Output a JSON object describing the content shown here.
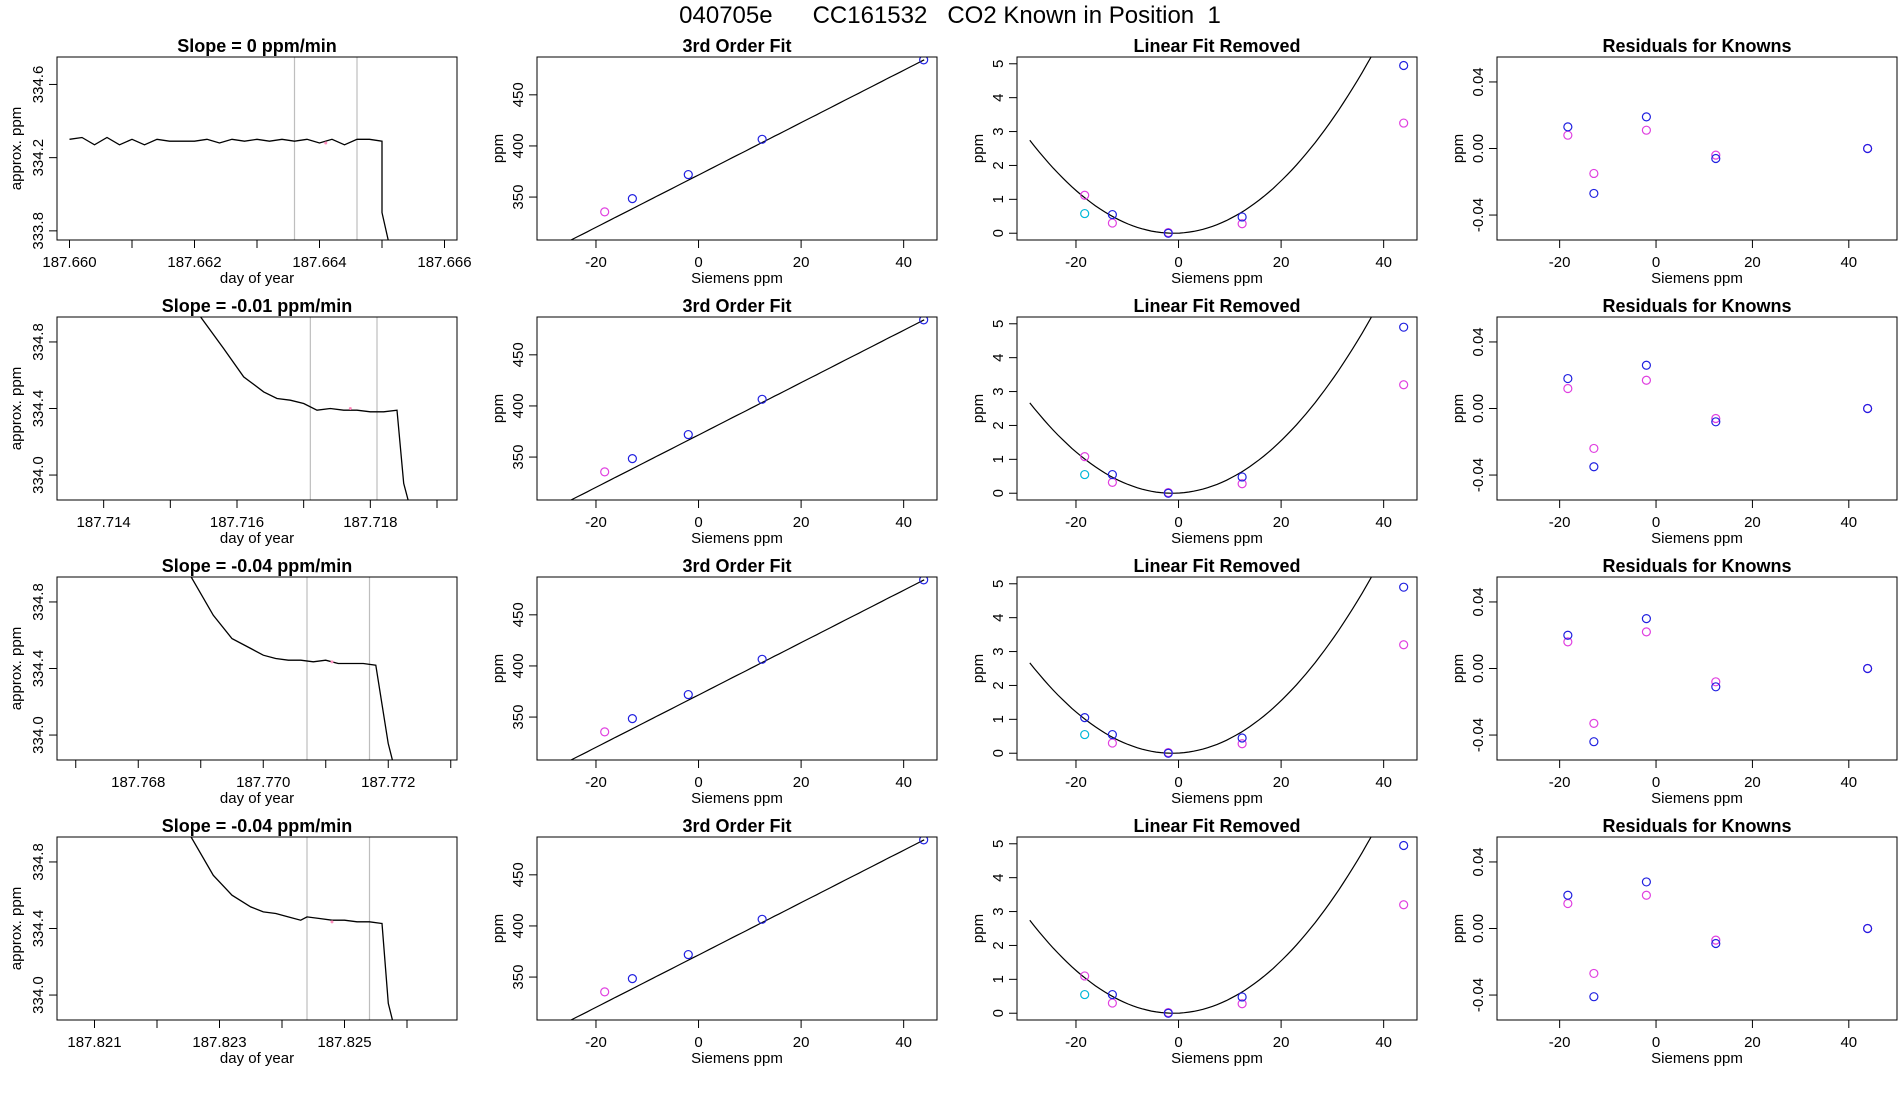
{
  "figure_title": "040705e      CC161532   CO2 Known in Position  1",
  "colors": {
    "line": "#000000",
    "gridline": "#bebebe",
    "blue": "#2020e0",
    "magenta": "#e040e0",
    "cyan": "#00b8d8",
    "pink": "#ff8fbf"
  },
  "chart_data": [
    {
      "type": "line",
      "title": "Slope =  0  ppm/min",
      "xlabel": "day of year",
      "ylabel": "approx. ppm",
      "xlim": [
        187.6598,
        187.6662
      ],
      "ylim": [
        333.75,
        334.75
      ],
      "xticks": [
        187.66,
        187.661,
        187.662,
        187.663,
        187.664,
        187.665,
        187.666
      ],
      "xtick_labels": [
        "187.660",
        "",
        "187.662",
        "",
        "187.664",
        "",
        "187.666"
      ],
      "yticks": [
        333.8,
        334.2,
        334.6
      ],
      "ytick_labels": [
        "333.8",
        "334.2",
        "334.6"
      ],
      "vlines": [
        187.6636,
        187.6646
      ],
      "x": [
        187.66,
        187.6602,
        187.6604,
        187.6606,
        187.6608,
        187.661,
        187.6612,
        187.6614,
        187.6616,
        187.6618,
        187.662,
        187.6622,
        187.6624,
        187.6626,
        187.6628,
        187.663,
        187.6632,
        187.6634,
        187.6636,
        187.6638,
        187.664,
        187.6642,
        187.6644,
        187.6646,
        187.6648,
        187.665,
        187.665,
        187.6651
      ],
      "y": [
        334.3,
        334.31,
        334.27,
        334.31,
        334.27,
        334.3,
        334.27,
        334.3,
        334.29,
        334.29,
        334.29,
        334.3,
        334.28,
        334.3,
        334.29,
        334.3,
        334.29,
        334.3,
        334.29,
        334.3,
        334.28,
        334.3,
        334.27,
        334.3,
        334.3,
        334.29,
        333.9,
        333.75
      ],
      "marker": {
        "x": 187.6641,
        "y": 334.28
      }
    },
    {
      "type": "scatter",
      "title": "3rd Order Fit",
      "xlabel": "Siemens ppm",
      "ylabel": "ppm",
      "xlim": [
        -31.5,
        46.5
      ],
      "ylim": [
        308,
        487
      ],
      "xticks": [
        -20,
        0,
        20,
        40
      ],
      "yticks": [
        350,
        400,
        450
      ],
      "curve": {
        "kind": "linear",
        "a": 371.6,
        "b": 2.56,
        "x0": -29,
        "x1": 44
      },
      "blue": [
        [
          -12.9,
          348.5
        ],
        [
          -2,
          372.0
        ],
        [
          12.4,
          406.5
        ],
        [
          43.9,
          484.2
        ]
      ],
      "magenta": [
        [
          -18.3,
          335.5
        ]
      ],
      "cyan": []
    },
    {
      "type": "scatter",
      "title": "Linear Fit Removed",
      "xlabel": "Siemens ppm",
      "ylabel": "ppm",
      "xlim": [
        -31.5,
        46.5
      ],
      "ylim": [
        -0.2,
        5.2
      ],
      "xticks": [
        -20,
        0,
        20,
        40
      ],
      "yticks": [
        0,
        1,
        2,
        3,
        4,
        5
      ],
      "curve": {
        "kind": "quad",
        "h": -1,
        "k": 0.0035,
        "x0": -29,
        "x1": 44
      },
      "blue": [
        [
          -12.9,
          0.55
        ],
        [
          -2,
          0.0
        ],
        [
          12.4,
          0.48
        ],
        [
          43.9,
          4.95
        ]
      ],
      "magenta": [
        [
          -18.3,
          1.12
        ],
        [
          -12.9,
          0.3
        ],
        [
          -2,
          0.02
        ],
        [
          12.4,
          0.28
        ],
        [
          43.9,
          3.25
        ]
      ],
      "cyan": [
        [
          -18.3,
          0.58
        ]
      ]
    },
    {
      "type": "scatter",
      "title": "Residuals for Knowns",
      "xlabel": "Siemens ppm",
      "ylabel": "ppm",
      "xlim": [
        -33,
        50
      ],
      "ylim": [
        -0.055,
        0.055
      ],
      "xticks": [
        -20,
        0,
        20,
        40
      ],
      "yticks": [
        -0.04,
        0.0,
        0.04
      ],
      "ytick_labels": [
        "-0.04",
        "0.00",
        "0.04"
      ],
      "blue": [
        [
          -18.3,
          0.013
        ],
        [
          -12.9,
          -0.027
        ],
        [
          -2,
          0.019
        ],
        [
          12.4,
          -0.006
        ],
        [
          43.9,
          0.0
        ]
      ],
      "magenta": [
        [
          -18.3,
          0.008
        ],
        [
          -12.9,
          -0.015
        ],
        [
          -2,
          0.011
        ],
        [
          12.4,
          -0.004
        ],
        [
          43.9,
          0.0
        ]
      ],
      "cyan": []
    },
    {
      "type": "line",
      "title": "Slope =  -0.01  ppm/min",
      "xlabel": "day of year",
      "ylabel": "approx. ppm",
      "xlim": [
        187.7133,
        187.7193
      ],
      "ylim": [
        333.85,
        334.95
      ],
      "xticks": [
        187.714,
        187.715,
        187.716,
        187.717,
        187.718,
        187.719
      ],
      "xtick_labels": [
        "187.714",
        "",
        "187.716",
        "",
        "187.718",
        ""
      ],
      "yticks": [
        334.0,
        334.4,
        334.8
      ],
      "ytick_labels": [
        "334.0",
        "334.4",
        "334.8"
      ],
      "vlines": [
        187.7171,
        187.7181
      ],
      "x": [
        187.7154,
        187.7158,
        187.7161,
        187.7164,
        187.7166,
        187.7168,
        187.717,
        187.7172,
        187.7174,
        187.7176,
        187.7178,
        187.718,
        187.7182,
        187.7184,
        187.7185,
        187.7186
      ],
      "y": [
        334.98,
        334.76,
        334.59,
        334.5,
        334.46,
        334.45,
        334.43,
        334.39,
        334.4,
        334.39,
        334.39,
        334.38,
        334.38,
        334.39,
        333.95,
        333.8
      ],
      "marker": {
        "x": 187.7177,
        "y": 334.4
      }
    },
    {
      "type": "scatter",
      "title": "3rd Order Fit",
      "xlabel": "Siemens ppm",
      "ylabel": "ppm",
      "xlim": [
        -31.5,
        46.5
      ],
      "ylim": [
        308,
        487
      ],
      "xticks": [
        -20,
        0,
        20,
        40
      ],
      "yticks": [
        350,
        400,
        450
      ],
      "curve": {
        "kind": "linear",
        "a": 371.6,
        "b": 2.56,
        "x0": -29,
        "x1": 44
      },
      "blue": [
        [
          -12.9,
          348.5
        ],
        [
          -2,
          372.0
        ],
        [
          12.4,
          406.5
        ],
        [
          43.9,
          484.2
        ]
      ],
      "magenta": [
        [
          -18.3,
          335.5
        ]
      ],
      "cyan": []
    },
    {
      "type": "scatter",
      "title": "Linear Fit Removed",
      "xlabel": "Siemens ppm",
      "ylabel": "ppm",
      "xlim": [
        -31.5,
        46.5
      ],
      "ylim": [
        -0.2,
        5.2
      ],
      "xticks": [
        -20,
        0,
        20,
        40
      ],
      "yticks": [
        0,
        1,
        2,
        3,
        4,
        5
      ],
      "curve": {
        "kind": "quad",
        "h": -1.2,
        "k": 0.00345,
        "x0": -29,
        "x1": 44
      },
      "blue": [
        [
          -12.9,
          0.55
        ],
        [
          -2,
          0.0
        ],
        [
          12.4,
          0.48
        ],
        [
          43.9,
          4.9
        ]
      ],
      "magenta": [
        [
          -18.3,
          1.08
        ],
        [
          -12.9,
          0.32
        ],
        [
          -2,
          0.02
        ],
        [
          12.4,
          0.28
        ],
        [
          43.9,
          3.2
        ]
      ],
      "cyan": [
        [
          -18.3,
          0.55
        ]
      ]
    },
    {
      "type": "scatter",
      "title": "Residuals for Knowns",
      "xlabel": "Siemens ppm",
      "ylabel": "ppm",
      "xlim": [
        -33,
        50
      ],
      "ylim": [
        -0.055,
        0.055
      ],
      "xticks": [
        -20,
        0,
        20,
        40
      ],
      "yticks": [
        -0.04,
        0.0,
        0.04
      ],
      "ytick_labels": [
        "-0.04",
        "0.00",
        "0.04"
      ],
      "blue": [
        [
          -18.3,
          0.018
        ],
        [
          -12.9,
          -0.035
        ],
        [
          -2,
          0.026
        ],
        [
          12.4,
          -0.008
        ],
        [
          43.9,
          0.0
        ]
      ],
      "magenta": [
        [
          -18.3,
          0.012
        ],
        [
          -12.9,
          -0.024
        ],
        [
          -2,
          0.017
        ],
        [
          12.4,
          -0.006
        ],
        [
          43.9,
          0.0
        ]
      ],
      "cyan": []
    },
    {
      "type": "line",
      "title": "Slope =  -0.04  ppm/min",
      "xlabel": "day of year",
      "ylabel": "approx. ppm",
      "xlim": [
        187.7667,
        187.7731
      ],
      "ylim": [
        333.85,
        334.95
      ],
      "xticks": [
        187.767,
        187.768,
        187.769,
        187.77,
        187.771,
        187.772,
        187.773
      ],
      "xtick_labels": [
        "",
        "187.768",
        "",
        "187.770",
        "",
        "187.772",
        ""
      ],
      "yticks": [
        334.0,
        334.4,
        334.8
      ],
      "ytick_labels": [
        "334.0",
        "334.4",
        "334.8"
      ],
      "vlines": [
        187.7707,
        187.7717
      ],
      "x": [
        187.7688,
        187.7692,
        187.7695,
        187.7698,
        187.77,
        187.7702,
        187.7704,
        187.7706,
        187.7708,
        187.771,
        187.7712,
        187.7714,
        187.7716,
        187.7718,
        187.772,
        187.7721
      ],
      "y": [
        334.98,
        334.72,
        334.58,
        334.52,
        334.48,
        334.46,
        334.45,
        334.45,
        334.44,
        334.45,
        334.43,
        334.43,
        334.43,
        334.42,
        333.95,
        333.8
      ],
      "marker": {
        "x": 187.7711,
        "y": 334.44
      }
    },
    {
      "type": "scatter",
      "title": "3rd Order Fit",
      "xlabel": "Siemens ppm",
      "ylabel": "ppm",
      "xlim": [
        -31.5,
        46.5
      ],
      "ylim": [
        308,
        487
      ],
      "xticks": [
        -20,
        0,
        20,
        40
      ],
      "yticks": [
        350,
        400,
        450
      ],
      "curve": {
        "kind": "linear",
        "a": 371.6,
        "b": 2.56,
        "x0": -29,
        "x1": 44
      },
      "blue": [
        [
          -12.9,
          348.5
        ],
        [
          -2,
          372.0
        ],
        [
          12.4,
          406.5
        ],
        [
          43.9,
          484.2
        ]
      ],
      "magenta": [
        [
          -18.3,
          335.5
        ]
      ],
      "cyan": []
    },
    {
      "type": "scatter",
      "title": "Linear Fit Removed",
      "xlabel": "Siemens ppm",
      "ylabel": "ppm",
      "xlim": [
        -31.5,
        46.5
      ],
      "ylim": [
        -0.2,
        5.2
      ],
      "xticks": [
        -20,
        0,
        20,
        40
      ],
      "yticks": [
        0,
        1,
        2,
        3,
        4,
        5
      ],
      "curve": {
        "kind": "quad",
        "h": -1.2,
        "k": 0.00345,
        "x0": -29,
        "x1": 44
      },
      "blue": [
        [
          -18.3,
          1.05
        ],
        [
          -12.9,
          0.55
        ],
        [
          -2,
          0.0
        ],
        [
          12.4,
          0.45
        ],
        [
          43.9,
          4.9
        ]
      ],
      "magenta": [
        [
          -12.9,
          0.3
        ],
        [
          -2,
          0.02
        ],
        [
          12.4,
          0.28
        ],
        [
          43.9,
          3.2
        ]
      ],
      "cyan": [
        [
          -18.3,
          0.55
        ]
      ]
    },
    {
      "type": "scatter",
      "title": "Residuals for Knowns",
      "xlabel": "Siemens ppm",
      "ylabel": "ppm",
      "xlim": [
        -33,
        50
      ],
      "ylim": [
        -0.055,
        0.055
      ],
      "xticks": [
        -20,
        0,
        20,
        40
      ],
      "yticks": [
        -0.04,
        0.0,
        0.04
      ],
      "ytick_labels": [
        "-0.04",
        "0.00",
        "0.04"
      ],
      "blue": [
        [
          -18.3,
          0.02
        ],
        [
          -12.9,
          -0.044
        ],
        [
          -2,
          0.03
        ],
        [
          12.4,
          -0.011
        ],
        [
          43.9,
          0.0
        ]
      ],
      "magenta": [
        [
          -18.3,
          0.016
        ],
        [
          -12.9,
          -0.033
        ],
        [
          -2,
          0.022
        ],
        [
          12.4,
          -0.008
        ],
        [
          43.9,
          0.0
        ]
      ],
      "cyan": []
    },
    {
      "type": "line",
      "title": "Slope =  -0.04  ppm/min",
      "xlabel": "day of year",
      "ylabel": "approx. ppm",
      "xlim": [
        187.8204,
        187.8268
      ],
      "ylim": [
        333.85,
        334.95
      ],
      "xticks": [
        187.821,
        187.822,
        187.823,
        187.824,
        187.825,
        187.826
      ],
      "xtick_labels": [
        "187.821",
        "",
        "187.823",
        "",
        "187.825",
        ""
      ],
      "yticks": [
        334.0,
        334.4,
        334.8
      ],
      "ytick_labels": [
        "334.0",
        "334.4",
        "334.8"
      ],
      "vlines": [
        187.8244,
        187.8254
      ],
      "x": [
        187.8225,
        187.8229,
        187.8232,
        187.8235,
        187.8237,
        187.8239,
        187.8241,
        187.8243,
        187.8244,
        187.8246,
        187.8248,
        187.825,
        187.8252,
        187.8254,
        187.8256,
        187.8257,
        187.8258
      ],
      "y": [
        334.98,
        334.72,
        334.6,
        334.53,
        334.5,
        334.49,
        334.47,
        334.45,
        334.47,
        334.46,
        334.45,
        334.45,
        334.44,
        334.44,
        334.43,
        333.95,
        333.8
      ],
      "marker": {
        "x": 187.8248,
        "y": 334.44
      }
    },
    {
      "type": "scatter",
      "title": "3rd Order Fit",
      "xlabel": "Siemens ppm",
      "ylabel": "ppm",
      "xlim": [
        -31.5,
        46.5
      ],
      "ylim": [
        308,
        487
      ],
      "xticks": [
        -20,
        0,
        20,
        40
      ],
      "yticks": [
        350,
        400,
        450
      ],
      "curve": {
        "kind": "linear",
        "a": 371.6,
        "b": 2.56,
        "x0": -29,
        "x1": 44
      },
      "blue": [
        [
          -12.9,
          348.5
        ],
        [
          -2,
          372.0
        ],
        [
          12.4,
          406.5
        ],
        [
          43.9,
          484.2
        ]
      ],
      "magenta": [
        [
          -18.3,
          335.5
        ]
      ],
      "cyan": []
    },
    {
      "type": "scatter",
      "title": "Linear Fit Removed",
      "xlabel": "Siemens ppm",
      "ylabel": "ppm",
      "xlim": [
        -31.5,
        46.5
      ],
      "ylim": [
        -0.2,
        5.2
      ],
      "xticks": [
        -20,
        0,
        20,
        40
      ],
      "yticks": [
        0,
        1,
        2,
        3,
        4,
        5
      ],
      "curve": {
        "kind": "quad",
        "h": -1.0,
        "k": 0.0035,
        "x0": -29,
        "x1": 44
      },
      "blue": [
        [
          -12.9,
          0.55
        ],
        [
          -2,
          0.0
        ],
        [
          12.4,
          0.48
        ],
        [
          43.9,
          4.95
        ]
      ],
      "magenta": [
        [
          -18.3,
          1.1
        ],
        [
          -12.9,
          0.3
        ],
        [
          -2,
          0.02
        ],
        [
          12.4,
          0.28
        ],
        [
          43.9,
          3.2
        ]
      ],
      "cyan": [
        [
          -18.3,
          0.55
        ]
      ]
    },
    {
      "type": "scatter",
      "title": "Residuals for Knowns",
      "xlabel": "Siemens ppm",
      "ylabel": "ppm",
      "xlim": [
        -33,
        50
      ],
      "ylim": [
        -0.055,
        0.055
      ],
      "xticks": [
        -20,
        0,
        20,
        40
      ],
      "yticks": [
        -0.04,
        0.0,
        0.04
      ],
      "ytick_labels": [
        "-0.04",
        "0.00",
        "0.04"
      ],
      "blue": [
        [
          -18.3,
          0.02
        ],
        [
          -12.9,
          -0.041
        ],
        [
          -2,
          0.028
        ],
        [
          12.4,
          -0.009
        ],
        [
          43.9,
          0.0
        ]
      ],
      "magenta": [
        [
          -18.3,
          0.015
        ],
        [
          -12.9,
          -0.027
        ],
        [
          -2,
          0.02
        ],
        [
          12.4,
          -0.007
        ],
        [
          43.9,
          0.0
        ]
      ],
      "cyan": []
    }
  ]
}
